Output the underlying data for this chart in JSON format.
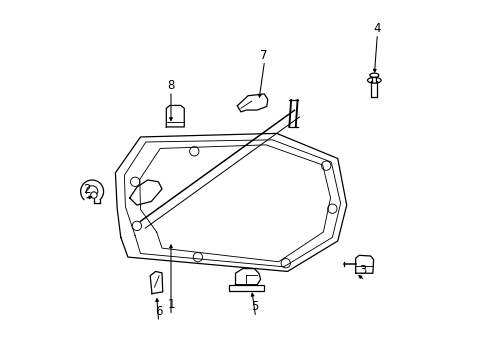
{
  "background_color": "#ffffff",
  "figure_width": 4.89,
  "figure_height": 3.6,
  "dpi": 100,
  "line_color": "#000000",
  "text_color": "#000000",
  "labels": [
    [
      1,
      0.295,
      0.1,
      0.295,
      0.33
    ],
    [
      2,
      0.06,
      0.42,
      0.085,
      0.455
    ],
    [
      3,
      0.83,
      0.195,
      0.81,
      0.24
    ],
    [
      4,
      0.87,
      0.87,
      0.862,
      0.79
    ],
    [
      5,
      0.53,
      0.095,
      0.52,
      0.195
    ],
    [
      6,
      0.26,
      0.082,
      0.255,
      0.18
    ],
    [
      7,
      0.555,
      0.795,
      0.54,
      0.72
    ],
    [
      8,
      0.295,
      0.71,
      0.295,
      0.655
    ]
  ]
}
